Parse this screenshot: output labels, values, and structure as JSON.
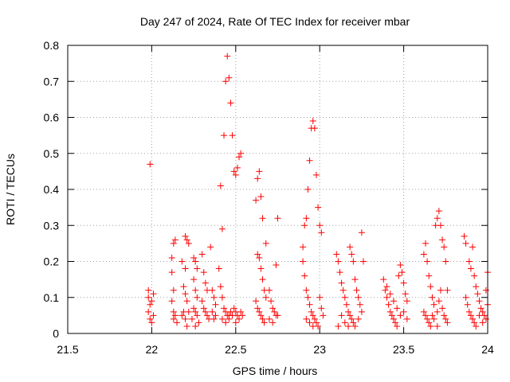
{
  "chart_data": {
    "type": "scatter",
    "title": "Day 247 of 2024, Rate Of TEC Index for receiver mbar",
    "xlabel": "GPS time / hours",
    "ylabel": "ROTI / TECUs",
    "xlim": [
      21.5,
      24
    ],
    "ylim": [
      0,
      0.8
    ],
    "x_ticks": [
      "21.5",
      "22",
      "22.5",
      "23",
      "23.5",
      "24"
    ],
    "y_ticks": [
      "0",
      "0.1",
      "0.2",
      "0.3",
      "0.4",
      "0.5",
      "0.6",
      "0.7",
      "0.8"
    ],
    "grid": true,
    "legend": "none",
    "marker": "+",
    "color": "#ff0000",
    "series": [
      {
        "points": [
          [
            21.99,
            0.47
          ],
          [
            21.98,
            0.12
          ],
          [
            21.98,
            0.1
          ],
          [
            21.99,
            0.08
          ],
          [
            21.98,
            0.06
          ],
          [
            21.99,
            0.04
          ],
          [
            22.0,
            0.03
          ],
          [
            22.01,
            0.11
          ],
          [
            22.0,
            0.09
          ],
          [
            22.01,
            0.05
          ],
          [
            22.12,
            0.21
          ],
          [
            22.13,
            0.25
          ],
          [
            22.14,
            0.26
          ],
          [
            22.12,
            0.17
          ],
          [
            22.13,
            0.12
          ],
          [
            22.12,
            0.09
          ],
          [
            22.13,
            0.06
          ],
          [
            22.14,
            0.05
          ],
          [
            22.13,
            0.04
          ],
          [
            22.15,
            0.03
          ],
          [
            22.2,
            0.27
          ],
          [
            22.21,
            0.26
          ],
          [
            22.22,
            0.25
          ],
          [
            22.18,
            0.2
          ],
          [
            22.2,
            0.18
          ],
          [
            22.19,
            0.13
          ],
          [
            22.2,
            0.11
          ],
          [
            22.21,
            0.09
          ],
          [
            22.19,
            0.06
          ],
          [
            22.2,
            0.04
          ],
          [
            22.21,
            0.02
          ],
          [
            22.18,
            0.05
          ],
          [
            22.22,
            0.06
          ],
          [
            22.25,
            0.21
          ],
          [
            22.26,
            0.2
          ],
          [
            22.27,
            0.18
          ],
          [
            22.25,
            0.15
          ],
          [
            22.26,
            0.12
          ],
          [
            22.27,
            0.1
          ],
          [
            22.25,
            0.07
          ],
          [
            22.26,
            0.06
          ],
          [
            22.27,
            0.05
          ],
          [
            22.24,
            0.04
          ],
          [
            22.28,
            0.03
          ],
          [
            22.26,
            0.02
          ],
          [
            22.3,
            0.22
          ],
          [
            22.31,
            0.17
          ],
          [
            22.32,
            0.14
          ],
          [
            22.33,
            0.12
          ],
          [
            22.3,
            0.09
          ],
          [
            22.31,
            0.07
          ],
          [
            22.32,
            0.06
          ],
          [
            22.33,
            0.05
          ],
          [
            22.34,
            0.04
          ],
          [
            22.35,
            0.24
          ],
          [
            22.36,
            0.12
          ],
          [
            22.37,
            0.1
          ],
          [
            22.38,
            0.08
          ],
          [
            22.36,
            0.06
          ],
          [
            22.38,
            0.05
          ],
          [
            22.37,
            0.04
          ],
          [
            22.41,
            0.41
          ],
          [
            22.42,
            0.29
          ],
          [
            22.43,
            0.55
          ],
          [
            22.44,
            0.7
          ],
          [
            22.45,
            0.77
          ],
          [
            22.46,
            0.71
          ],
          [
            22.47,
            0.64
          ],
          [
            22.48,
            0.55
          ],
          [
            22.49,
            0.45
          ],
          [
            22.5,
            0.44
          ],
          [
            22.51,
            0.46
          ],
          [
            22.52,
            0.49
          ],
          [
            22.53,
            0.5
          ],
          [
            22.4,
            0.18
          ],
          [
            22.41,
            0.13
          ],
          [
            22.42,
            0.1
          ],
          [
            22.43,
            0.07
          ],
          [
            22.44,
            0.06
          ],
          [
            22.45,
            0.05
          ],
          [
            22.46,
            0.04
          ],
          [
            22.47,
            0.06
          ],
          [
            22.48,
            0.05
          ],
          [
            22.49,
            0.07
          ],
          [
            22.5,
            0.06
          ],
          [
            22.51,
            0.05
          ],
          [
            22.52,
            0.04
          ],
          [
            22.53,
            0.06
          ],
          [
            22.54,
            0.05
          ],
          [
            22.42,
            0.04
          ],
          [
            22.44,
            0.03
          ],
          [
            22.46,
            0.05
          ],
          [
            22.5,
            0.03
          ],
          [
            22.62,
            0.37
          ],
          [
            22.63,
            0.43
          ],
          [
            22.64,
            0.45
          ],
          [
            22.65,
            0.38
          ],
          [
            22.66,
            0.32
          ],
          [
            22.68,
            0.25
          ],
          [
            22.63,
            0.22
          ],
          [
            22.64,
            0.21
          ],
          [
            22.65,
            0.18
          ],
          [
            22.66,
            0.15
          ],
          [
            22.67,
            0.12
          ],
          [
            22.68,
            0.1
          ],
          [
            22.62,
            0.09
          ],
          [
            22.63,
            0.07
          ],
          [
            22.64,
            0.06
          ],
          [
            22.65,
            0.05
          ],
          [
            22.66,
            0.04
          ],
          [
            22.67,
            0.03
          ],
          [
            22.7,
            0.12
          ],
          [
            22.71,
            0.09
          ],
          [
            22.72,
            0.07
          ],
          [
            22.73,
            0.06
          ],
          [
            22.74,
            0.05
          ],
          [
            22.75,
            0.32
          ],
          [
            22.74,
            0.19
          ],
          [
            22.7,
            0.04
          ],
          [
            22.72,
            0.03
          ],
          [
            22.75,
            0.05
          ],
          [
            22.9,
            0.24
          ],
          [
            22.91,
            0.3
          ],
          [
            22.92,
            0.32
          ],
          [
            22.93,
            0.4
          ],
          [
            22.94,
            0.48
          ],
          [
            22.95,
            0.57
          ],
          [
            22.96,
            0.59
          ],
          [
            22.97,
            0.57
          ],
          [
            22.98,
            0.44
          ],
          [
            22.99,
            0.35
          ],
          [
            23.0,
            0.3
          ],
          [
            23.01,
            0.28
          ],
          [
            22.9,
            0.2
          ],
          [
            22.91,
            0.16
          ],
          [
            22.92,
            0.12
          ],
          [
            22.93,
            0.1
          ],
          [
            22.94,
            0.08
          ],
          [
            22.95,
            0.06
          ],
          [
            22.96,
            0.05
          ],
          [
            22.97,
            0.04
          ],
          [
            22.98,
            0.03
          ],
          [
            22.99,
            0.02
          ],
          [
            23.0,
            0.1
          ],
          [
            23.01,
            0.07
          ],
          [
            23.02,
            0.05
          ],
          [
            22.92,
            0.04
          ],
          [
            22.94,
            0.03
          ],
          [
            22.96,
            0.02
          ],
          [
            23.1,
            0.22
          ],
          [
            23.11,
            0.2
          ],
          [
            23.12,
            0.17
          ],
          [
            23.13,
            0.14
          ],
          [
            23.14,
            0.12
          ],
          [
            23.15,
            0.1
          ],
          [
            23.16,
            0.08
          ],
          [
            23.17,
            0.06
          ],
          [
            23.18,
            0.05
          ],
          [
            23.19,
            0.04
          ],
          [
            23.2,
            0.03
          ],
          [
            23.11,
            0.02
          ],
          [
            23.13,
            0.05
          ],
          [
            23.15,
            0.03
          ],
          [
            23.17,
            0.02
          ],
          [
            23.18,
            0.24
          ],
          [
            23.19,
            0.22
          ],
          [
            23.2,
            0.2
          ],
          [
            23.21,
            0.15
          ],
          [
            23.22,
            0.12
          ],
          [
            23.23,
            0.1
          ],
          [
            23.24,
            0.08
          ],
          [
            23.25,
            0.28
          ],
          [
            23.26,
            0.2
          ],
          [
            23.25,
            0.06
          ],
          [
            23.23,
            0.04
          ],
          [
            23.21,
            0.02
          ],
          [
            23.38,
            0.15
          ],
          [
            23.39,
            0.12
          ],
          [
            23.4,
            0.1
          ],
          [
            23.41,
            0.08
          ],
          [
            23.42,
            0.06
          ],
          [
            23.43,
            0.05
          ],
          [
            23.44,
            0.04
          ],
          [
            23.45,
            0.03
          ],
          [
            23.46,
            0.02
          ],
          [
            23.47,
            0.16
          ],
          [
            23.48,
            0.19
          ],
          [
            23.49,
            0.17
          ],
          [
            23.5,
            0.14
          ],
          [
            23.51,
            0.11
          ],
          [
            23.52,
            0.09
          ],
          [
            23.5,
            0.06
          ],
          [
            23.48,
            0.05
          ],
          [
            23.46,
            0.07
          ],
          [
            23.44,
            0.09
          ],
          [
            23.42,
            0.11
          ],
          [
            23.4,
            0.13
          ],
          [
            23.52,
            0.04
          ],
          [
            23.62,
            0.22
          ],
          [
            23.63,
            0.25
          ],
          [
            23.64,
            0.2
          ],
          [
            23.65,
            0.16
          ],
          [
            23.66,
            0.13
          ],
          [
            23.67,
            0.1
          ],
          [
            23.68,
            0.08
          ],
          [
            23.69,
            0.3
          ],
          [
            23.7,
            0.32
          ],
          [
            23.71,
            0.34
          ],
          [
            23.72,
            0.3
          ],
          [
            23.73,
            0.26
          ],
          [
            23.74,
            0.24
          ],
          [
            23.75,
            0.2
          ],
          [
            23.76,
            0.12
          ],
          [
            23.62,
            0.06
          ],
          [
            23.63,
            0.05
          ],
          [
            23.64,
            0.04
          ],
          [
            23.65,
            0.03
          ],
          [
            23.66,
            0.02
          ],
          [
            23.67,
            0.05
          ],
          [
            23.68,
            0.04
          ],
          [
            23.7,
            0.06
          ],
          [
            23.71,
            0.09
          ],
          [
            23.72,
            0.12
          ],
          [
            23.73,
            0.07
          ],
          [
            23.74,
            0.05
          ],
          [
            23.75,
            0.04
          ],
          [
            23.76,
            0.03
          ],
          [
            23.7,
            0.02
          ],
          [
            23.86,
            0.27
          ],
          [
            23.87,
            0.25
          ],
          [
            23.89,
            0.2
          ],
          [
            23.9,
            0.18
          ],
          [
            23.91,
            0.24
          ],
          [
            23.92,
            0.16
          ],
          [
            23.93,
            0.13
          ],
          [
            23.94,
            0.11
          ],
          [
            23.95,
            0.09
          ],
          [
            23.96,
            0.07
          ],
          [
            23.97,
            0.06
          ],
          [
            23.98,
            0.05
          ],
          [
            23.99,
            0.04
          ],
          [
            24.0,
            0.17
          ],
          [
            23.87,
            0.1
          ],
          [
            23.88,
            0.08
          ],
          [
            23.89,
            0.06
          ],
          [
            23.9,
            0.05
          ],
          [
            23.91,
            0.04
          ],
          [
            23.92,
            0.03
          ],
          [
            23.93,
            0.02
          ],
          [
            23.95,
            0.05
          ],
          [
            23.97,
            0.03
          ],
          [
            23.99,
            0.12
          ],
          [
            24.0,
            0.08
          ]
        ]
      }
    ]
  }
}
